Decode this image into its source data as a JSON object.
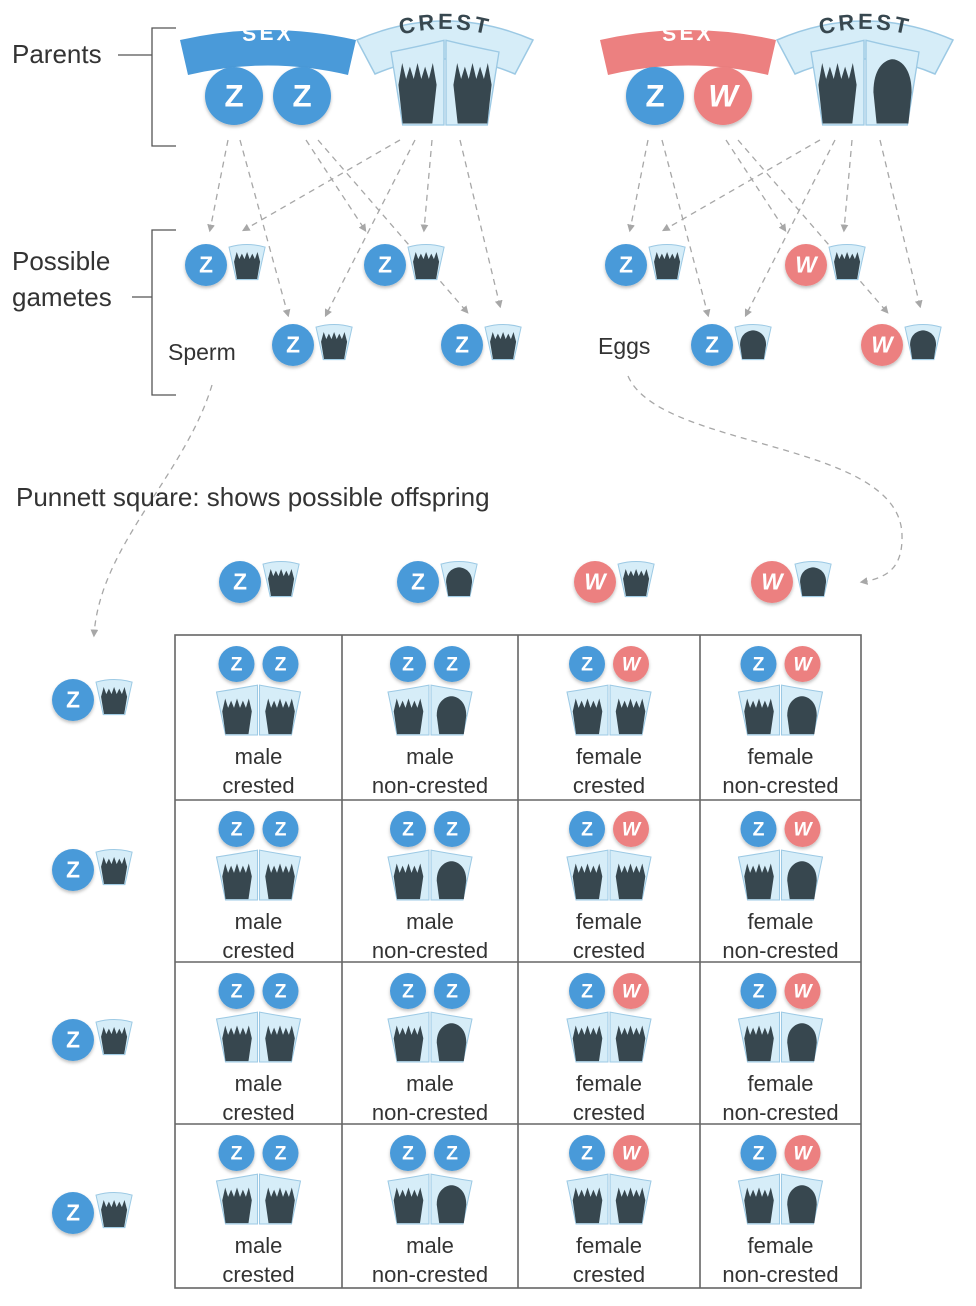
{
  "labels": {
    "parents": "Parents",
    "possible": "Possible",
    "gametes": "gametes",
    "sperm": "Sperm",
    "eggs": "Eggs",
    "punnett_title": "Punnett square: shows possible offspring"
  },
  "banners": {
    "sex": "SEX",
    "crest": "CREST"
  },
  "father": {
    "sex": [
      "Z",
      "Z"
    ],
    "crest": [
      "crested",
      "crested"
    ]
  },
  "mother": {
    "sex": [
      "Z",
      "W"
    ],
    "crest": [
      "crested",
      "non-crested"
    ]
  },
  "sperm_gametes": [
    {
      "sex": "Z",
      "crest": "crested"
    },
    {
      "sex": "Z",
      "crest": "crested"
    },
    {
      "sex": "Z",
      "crest": "crested"
    },
    {
      "sex": "Z",
      "crest": "crested"
    }
  ],
  "egg_gametes": [
    {
      "sex": "Z",
      "crest": "crested"
    },
    {
      "sex": "W",
      "crest": "crested"
    },
    {
      "sex": "Z",
      "crest": "non-crested"
    },
    {
      "sex": "W",
      "crest": "non-crested"
    }
  ],
  "punnett": {
    "columns": [
      {
        "sex": "Z",
        "crest": "crested"
      },
      {
        "sex": "Z",
        "crest": "non-crested"
      },
      {
        "sex": "W",
        "crest": "crested"
      },
      {
        "sex": "W",
        "crest": "non-crested"
      }
    ],
    "rows": [
      {
        "sex": "Z",
        "crest": "crested"
      },
      {
        "sex": "Z",
        "crest": "crested"
      },
      {
        "sex": "Z",
        "crest": "crested"
      },
      {
        "sex": "Z",
        "crest": "crested"
      }
    ],
    "cells": [
      [
        {
          "sex": [
            "Z",
            "Z"
          ],
          "crest": [
            "crested",
            "crested"
          ],
          "label1": "male",
          "label2": "crested"
        },
        {
          "sex": [
            "Z",
            "Z"
          ],
          "crest": [
            "crested",
            "non-crested"
          ],
          "label1": "male",
          "label2": "non-crested"
        },
        {
          "sex": [
            "Z",
            "W"
          ],
          "crest": [
            "crested",
            "crested"
          ],
          "label1": "female",
          "label2": "crested"
        },
        {
          "sex": [
            "Z",
            "W"
          ],
          "crest": [
            "crested",
            "non-crested"
          ],
          "label1": "female",
          "label2": "non-crested"
        }
      ],
      [
        {
          "sex": [
            "Z",
            "Z"
          ],
          "crest": [
            "crested",
            "crested"
          ],
          "label1": "male",
          "label2": "crested"
        },
        {
          "sex": [
            "Z",
            "Z"
          ],
          "crest": [
            "crested",
            "non-crested"
          ],
          "label1": "male",
          "label2": "non-crested"
        },
        {
          "sex": [
            "Z",
            "W"
          ],
          "crest": [
            "crested",
            "crested"
          ],
          "label1": "female",
          "label2": "crested"
        },
        {
          "sex": [
            "Z",
            "W"
          ],
          "crest": [
            "crested",
            "non-crested"
          ],
          "label1": "female",
          "label2": "non-crested"
        }
      ],
      [
        {
          "sex": [
            "Z",
            "Z"
          ],
          "crest": [
            "crested",
            "crested"
          ],
          "label1": "male",
          "label2": "crested"
        },
        {
          "sex": [
            "Z",
            "Z"
          ],
          "crest": [
            "crested",
            "non-crested"
          ],
          "label1": "male",
          "label2": "non-crested"
        },
        {
          "sex": [
            "Z",
            "W"
          ],
          "crest": [
            "crested",
            "crested"
          ],
          "label1": "female",
          "label2": "crested"
        },
        {
          "sex": [
            "Z",
            "W"
          ],
          "crest": [
            "crested",
            "non-crested"
          ],
          "label1": "female",
          "label2": "non-crested"
        }
      ],
      [
        {
          "sex": [
            "Z",
            "Z"
          ],
          "crest": [
            "crested",
            "crested"
          ],
          "label1": "male",
          "label2": "crested"
        },
        {
          "sex": [
            "Z",
            "Z"
          ],
          "crest": [
            "crested",
            "non-crested"
          ],
          "label1": "male",
          "label2": "non-crested"
        },
        {
          "sex": [
            "Z",
            "W"
          ],
          "crest": [
            "crested",
            "crested"
          ],
          "label1": "female",
          "label2": "crested"
        },
        {
          "sex": [
            "Z",
            "W"
          ],
          "crest": [
            "crested",
            "non-crested"
          ],
          "label1": "female",
          "label2": "non-crested"
        }
      ]
    ]
  },
  "colors": {
    "z_chromosome": "#4a9ad9",
    "w_chromosome": "#ec8080",
    "sex_banner_male": "#4a9ad9",
    "sex_banner_female": "#ec8080",
    "crest_banner": "#d6edf8",
    "crest_outline": "#9cc9e4",
    "feather": "#37474f",
    "arrow": "#a7a7a7",
    "grid": "#666666",
    "text": "#333333"
  }
}
